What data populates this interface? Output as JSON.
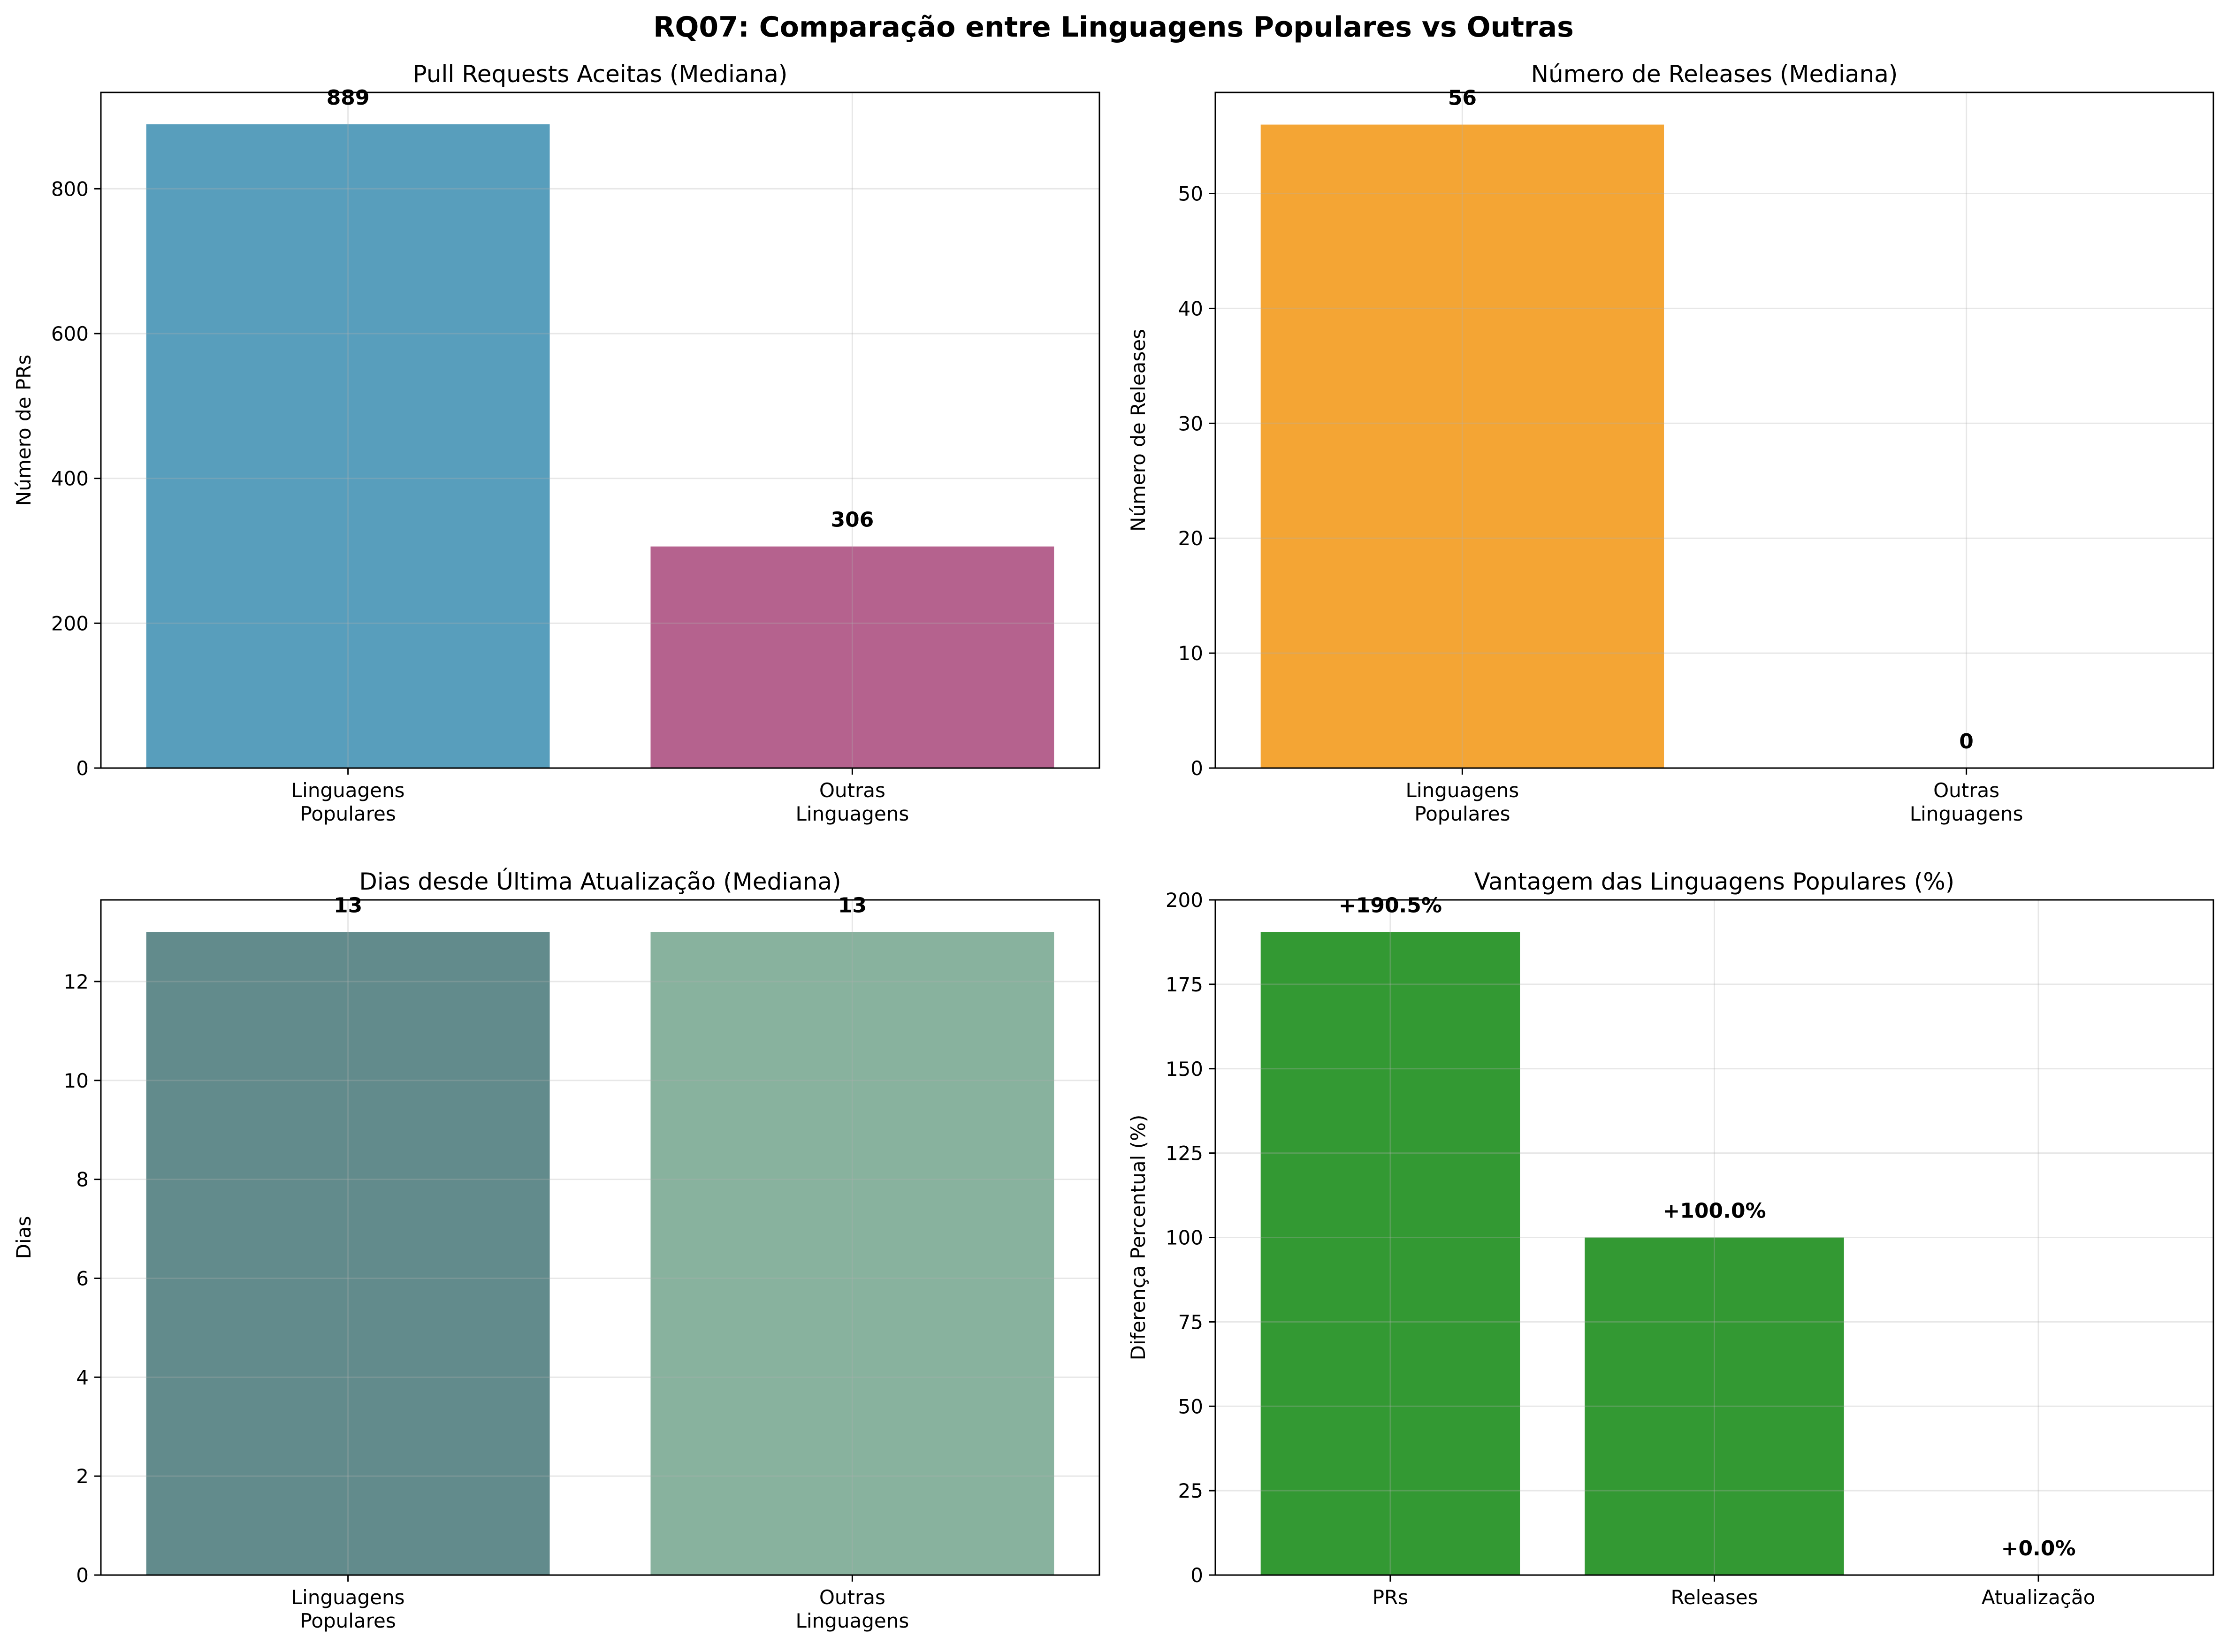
{
  "figure": {
    "title": "RQ07: Comparação entre Linguagens Populares vs Outras"
  },
  "chart_data": [
    {
      "type": "bar",
      "title": "Pull Requests Aceitas (Mediana)",
      "xlabel": "",
      "ylabel": "Número de PRs",
      "categories": [
        "Linguagens\nPopulares",
        "Outras\nLinguagens"
      ],
      "values": [
        889,
        306
      ],
      "value_labels": [
        "889",
        "306"
      ],
      "colors": [
        "#2E86AB",
        "#A23B72"
      ],
      "ylim": [
        0,
        933
      ],
      "yticks": [
        0,
        200,
        400,
        600,
        800
      ],
      "grid": true,
      "legend": "none"
    },
    {
      "type": "bar",
      "title": "Número de Releases (Mediana)",
      "xlabel": "",
      "ylabel": "Número de Releases",
      "categories": [
        "Linguagens\nPopulares",
        "Outras\nLinguagens"
      ],
      "values": [
        56,
        0
      ],
      "value_labels": [
        "56",
        "0"
      ],
      "colors": [
        "#F18F01",
        "#C73E1D"
      ],
      "ylim": [
        0,
        58.8
      ],
      "yticks": [
        0,
        10,
        20,
        30,
        40,
        50
      ],
      "grid": true,
      "legend": "none"
    },
    {
      "type": "bar",
      "title": "Dias desde Última Atualização (Mediana)",
      "xlabel": "",
      "ylabel": "Dias",
      "categories": [
        "Linguagens\nPopulares",
        "Outras\nLinguagens"
      ],
      "values": [
        13,
        13
      ],
      "value_labels": [
        "13",
        "13"
      ],
      "colors": [
        "#3B6E6F",
        "#6A9F86"
      ],
      "ylim": [
        0,
        13.65
      ],
      "yticks": [
        0,
        2,
        4,
        6,
        8,
        10,
        12
      ],
      "grid": true,
      "legend": "none"
    },
    {
      "type": "bar",
      "title": "Vantagem das Linguagens Populares (%)",
      "xlabel": "",
      "ylabel": "Diferença Percentual (%)",
      "categories": [
        "PRs",
        "Releases",
        "Atualização"
      ],
      "values": [
        190.5,
        100.0,
        0.0
      ],
      "value_labels": [
        "+190.5%",
        "+100.0%",
        "+0.0%"
      ],
      "colors": [
        "#008000",
        "#008000",
        "#008000"
      ],
      "ylim": [
        0,
        200
      ],
      "yticks": [
        0,
        25,
        50,
        75,
        100,
        125,
        150,
        175,
        200
      ],
      "grid": true,
      "legend": "none"
    }
  ]
}
